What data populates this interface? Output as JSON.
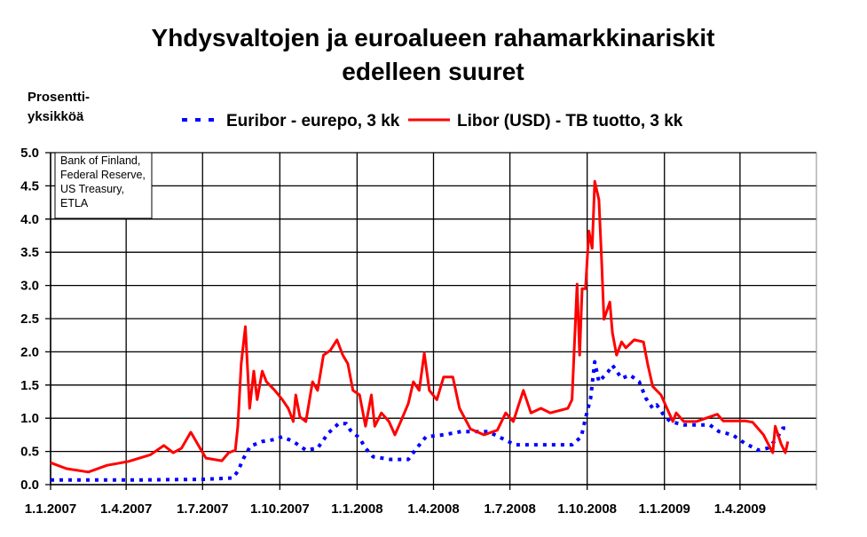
{
  "chart_data": {
    "type": "line",
    "title": [
      "Yhdysvaltojen ja euroalueen rahamarkkinariskit",
      "edelleen suuret"
    ],
    "ylabel": [
      "Prosentti-",
      "yksikköä"
    ],
    "xlabel": "",
    "source": [
      "Bank of Finland,",
      "Federal Reserve,",
      "US Treasury,",
      "ETLA"
    ],
    "ylim": [
      0,
      5
    ],
    "yticks": [
      "0.0",
      "0.5",
      "1.0",
      "1.5",
      "2.0",
      "2.5",
      "3.0",
      "3.5",
      "4.0",
      "4.5",
      "5.0"
    ],
    "xlim": [
      "2007-01-01",
      "2009-07-01"
    ],
    "xticks": [
      {
        "date": "2007-01-01",
        "label": "1.1.2007"
      },
      {
        "date": "2007-04-01",
        "label": "1.4.2007"
      },
      {
        "date": "2007-07-01",
        "label": "1.7.2007"
      },
      {
        "date": "2007-10-01",
        "label": "1.10.2007"
      },
      {
        "date": "2008-01-01",
        "label": "1.1.2008"
      },
      {
        "date": "2008-04-01",
        "label": "1.4.2008"
      },
      {
        "date": "2008-07-01",
        "label": "1.7.2008"
      },
      {
        "date": "2008-10-01",
        "label": "1.10.2008"
      },
      {
        "date": "2009-01-01",
        "label": "1.1.2009"
      },
      {
        "date": "2009-04-01",
        "label": "1.4.2009"
      },
      {
        "date": "2009-07-01",
        "label": ""
      }
    ],
    "grid": true,
    "legend_position": "top",
    "series": [
      {
        "name": "Euribor - eurepo, 3 kk",
        "color": "#0000ff",
        "style": "dotted",
        "points": [
          [
            "2007-01-01",
            0.07
          ],
          [
            "2007-04-09",
            0.07
          ],
          [
            "2007-07-03",
            0.08
          ],
          [
            "2007-08-06",
            0.1
          ],
          [
            "2007-08-12",
            0.2
          ],
          [
            "2007-08-19",
            0.4
          ],
          [
            "2007-08-27",
            0.58
          ],
          [
            "2007-09-10",
            0.65
          ],
          [
            "2007-09-25",
            0.68
          ],
          [
            "2007-10-04",
            0.72
          ],
          [
            "2007-10-17",
            0.65
          ],
          [
            "2007-11-01",
            0.52
          ],
          [
            "2007-11-15",
            0.55
          ],
          [
            "2007-11-28",
            0.78
          ],
          [
            "2007-12-10",
            0.92
          ],
          [
            "2007-12-19",
            0.92
          ],
          [
            "2007-12-24",
            0.82
          ],
          [
            "2008-01-04",
            0.7
          ],
          [
            "2008-01-11",
            0.55
          ],
          [
            "2008-01-20",
            0.42
          ],
          [
            "2008-02-10",
            0.38
          ],
          [
            "2008-03-02",
            0.38
          ],
          [
            "2008-03-12",
            0.55
          ],
          [
            "2008-03-23",
            0.72
          ],
          [
            "2008-04-13",
            0.75
          ],
          [
            "2008-05-04",
            0.8
          ],
          [
            "2008-06-05",
            0.8
          ],
          [
            "2008-06-21",
            0.7
          ],
          [
            "2008-07-07",
            0.6
          ],
          [
            "2008-08-18",
            0.6
          ],
          [
            "2008-09-13",
            0.6
          ],
          [
            "2008-09-24",
            0.72
          ],
          [
            "2008-09-29",
            1.0
          ],
          [
            "2008-10-05",
            1.3
          ],
          [
            "2008-10-10",
            1.85
          ],
          [
            "2008-10-15",
            1.55
          ],
          [
            "2008-10-26",
            1.7
          ],
          [
            "2008-10-31",
            1.8
          ],
          [
            "2008-11-11",
            1.6
          ],
          [
            "2008-11-21",
            1.65
          ],
          [
            "2008-12-02",
            1.55
          ],
          [
            "2008-12-10",
            1.3
          ],
          [
            "2008-12-18",
            1.15
          ],
          [
            "2008-12-23",
            1.2
          ],
          [
            "2008-12-31",
            1.05
          ],
          [
            "2009-01-08",
            0.95
          ],
          [
            "2009-01-24",
            0.9
          ],
          [
            "2009-02-24",
            0.9
          ],
          [
            "2009-03-07",
            0.8
          ],
          [
            "2009-03-23",
            0.75
          ],
          [
            "2009-04-07",
            0.62
          ],
          [
            "2009-04-23",
            0.52
          ],
          [
            "2009-05-04",
            0.55
          ],
          [
            "2009-05-14",
            0.68
          ],
          [
            "2009-05-22",
            0.85
          ],
          [
            "2009-05-27",
            0.85
          ]
        ]
      },
      {
        "name": "Libor (USD) - TB tuotto, 3 kk",
        "color": "#ff0000",
        "style": "solid",
        "points": [
          [
            "2007-01-01",
            0.33
          ],
          [
            "2007-01-20",
            0.24
          ],
          [
            "2007-02-15",
            0.19
          ],
          [
            "2007-03-09",
            0.29
          ],
          [
            "2007-04-04",
            0.35
          ],
          [
            "2007-04-30",
            0.45
          ],
          [
            "2007-05-16",
            0.59
          ],
          [
            "2007-05-27",
            0.48
          ],
          [
            "2007-06-06",
            0.55
          ],
          [
            "2007-06-17",
            0.79
          ],
          [
            "2007-06-28",
            0.55
          ],
          [
            "2007-07-05",
            0.4
          ],
          [
            "2007-07-24",
            0.36
          ],
          [
            "2007-08-01",
            0.48
          ],
          [
            "2007-08-09",
            0.52
          ],
          [
            "2007-08-12",
            0.88
          ],
          [
            "2007-08-16",
            1.82
          ],
          [
            "2007-08-21",
            2.38
          ],
          [
            "2007-08-26",
            1.15
          ],
          [
            "2007-08-31",
            1.71
          ],
          [
            "2007-09-04",
            1.28
          ],
          [
            "2007-09-10",
            1.71
          ],
          [
            "2007-09-15",
            1.55
          ],
          [
            "2007-09-25",
            1.42
          ],
          [
            "2007-10-04",
            1.28
          ],
          [
            "2007-10-11",
            1.15
          ],
          [
            "2007-10-17",
            0.95
          ],
          [
            "2007-10-20",
            1.35
          ],
          [
            "2007-10-25",
            1.02
          ],
          [
            "2007-11-01",
            0.95
          ],
          [
            "2007-11-09",
            1.55
          ],
          [
            "2007-11-15",
            1.42
          ],
          [
            "2007-11-22",
            1.95
          ],
          [
            "2007-11-30",
            2.02
          ],
          [
            "2007-12-08",
            2.18
          ],
          [
            "2007-12-15",
            1.95
          ],
          [
            "2007-12-21",
            1.82
          ],
          [
            "2007-12-27",
            1.42
          ],
          [
            "2008-01-04",
            1.35
          ],
          [
            "2008-01-11",
            0.88
          ],
          [
            "2008-01-18",
            1.35
          ],
          [
            "2008-01-22",
            0.88
          ],
          [
            "2008-01-30",
            1.08
          ],
          [
            "2008-02-08",
            0.95
          ],
          [
            "2008-02-15",
            0.75
          ],
          [
            "2008-02-22",
            0.95
          ],
          [
            "2008-03-02",
            1.22
          ],
          [
            "2008-03-08",
            1.55
          ],
          [
            "2008-03-15",
            1.42
          ],
          [
            "2008-03-21",
            1.98
          ],
          [
            "2008-03-27",
            1.42
          ],
          [
            "2008-04-05",
            1.28
          ],
          [
            "2008-04-13",
            1.62
          ],
          [
            "2008-04-24",
            1.62
          ],
          [
            "2008-05-02",
            1.15
          ],
          [
            "2008-05-15",
            0.84
          ],
          [
            "2008-05-31",
            0.75
          ],
          [
            "2008-06-16",
            0.82
          ],
          [
            "2008-06-26",
            1.08
          ],
          [
            "2008-07-05",
            0.95
          ],
          [
            "2008-07-17",
            1.42
          ],
          [
            "2008-07-26",
            1.08
          ],
          [
            "2008-08-07",
            1.15
          ],
          [
            "2008-08-18",
            1.08
          ],
          [
            "2008-09-08",
            1.15
          ],
          [
            "2008-09-13",
            1.28
          ],
          [
            "2008-09-19",
            3.02
          ],
          [
            "2008-09-22",
            1.95
          ],
          [
            "2008-09-25",
            2.95
          ],
          [
            "2008-09-29",
            2.95
          ],
          [
            "2008-10-03",
            3.82
          ],
          [
            "2008-10-07",
            3.56
          ],
          [
            "2008-10-10",
            4.57
          ],
          [
            "2008-10-15",
            4.29
          ],
          [
            "2008-10-18",
            3.42
          ],
          [
            "2008-10-21",
            2.49
          ],
          [
            "2008-10-28",
            2.75
          ],
          [
            "2008-10-31",
            2.29
          ],
          [
            "2008-11-05",
            1.95
          ],
          [
            "2008-11-11",
            2.15
          ],
          [
            "2008-11-16",
            2.06
          ],
          [
            "2008-11-26",
            2.18
          ],
          [
            "2008-12-07",
            2.15
          ],
          [
            "2008-12-12",
            1.82
          ],
          [
            "2008-12-18",
            1.48
          ],
          [
            "2008-12-28",
            1.35
          ],
          [
            "2009-01-04",
            1.15
          ],
          [
            "2009-01-11",
            0.95
          ],
          [
            "2009-01-15",
            1.08
          ],
          [
            "2009-01-24",
            0.95
          ],
          [
            "2009-02-08",
            0.95
          ],
          [
            "2009-02-24",
            1.02
          ],
          [
            "2009-03-05",
            1.06
          ],
          [
            "2009-03-12",
            0.96
          ],
          [
            "2009-04-07",
            0.96
          ],
          [
            "2009-04-16",
            0.94
          ],
          [
            "2009-04-29",
            0.75
          ],
          [
            "2009-05-10",
            0.48
          ],
          [
            "2009-05-13",
            0.88
          ],
          [
            "2009-05-20",
            0.61
          ],
          [
            "2009-05-25",
            0.48
          ],
          [
            "2009-05-28",
            0.65
          ]
        ]
      }
    ]
  }
}
